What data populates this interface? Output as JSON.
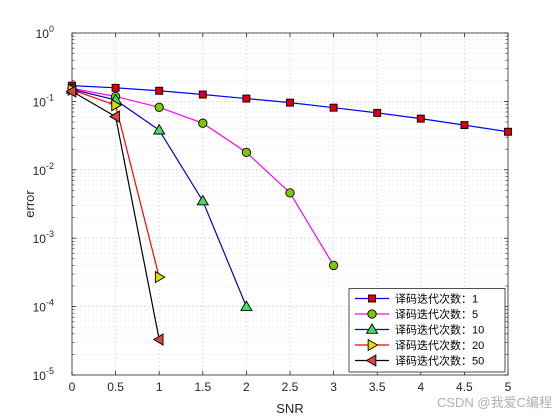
{
  "chart_data": {
    "type": "line",
    "xlabel": "SNR",
    "ylabel": "error",
    "yscale": "log",
    "xlim": [
      0,
      5
    ],
    "ylim": [
      1e-05,
      1
    ],
    "grid": true,
    "legend_position": "bottom-right",
    "x_ticks": [
      "0",
      "0.5",
      "1",
      "1.5",
      "2",
      "2.5",
      "3",
      "3.5",
      "4",
      "4.5",
      "5"
    ],
    "y_ticks": [
      {
        "base": "10",
        "exp": "0"
      },
      {
        "base": "10",
        "exp": "-1"
      },
      {
        "base": "10",
        "exp": "-2"
      },
      {
        "base": "10",
        "exp": "-3"
      },
      {
        "base": "10",
        "exp": "-4"
      },
      {
        "base": "10",
        "exp": "-5"
      }
    ],
    "series": [
      {
        "name": "译码迭代次数：1",
        "color": "#0000ff",
        "marker": "square",
        "marker_color": "#dd0000",
        "x": [
          0,
          0.5,
          1,
          1.5,
          2,
          2.5,
          3,
          3.5,
          4,
          4.5,
          5
        ],
        "y": [
          0.17,
          0.158,
          0.143,
          0.126,
          0.11,
          0.096,
          0.081,
          0.068,
          0.056,
          0.045,
          0.036
        ]
      },
      {
        "name": "译码迭代次数：5",
        "color": "#ff00ff",
        "marker": "circle",
        "marker_color": "#77cc00",
        "x": [
          0,
          0.5,
          1,
          1.5,
          2,
          2.5,
          3
        ],
        "y": [
          0.155,
          0.118,
          0.082,
          0.048,
          0.018,
          0.0046,
          0.0004
        ]
      },
      {
        "name": "译码迭代次数：10",
        "color": "#0000cc",
        "marker": "triangle-up",
        "marker_color": "#44dd66",
        "x": [
          0,
          0.5,
          1,
          1.5,
          2
        ],
        "y": [
          0.15,
          0.105,
          0.038,
          0.0035,
          0.0001
        ]
      },
      {
        "name": "译码迭代次数：20",
        "color": "#ff0000",
        "marker": "triangle-right",
        "marker_color": "#dddd00",
        "x": [
          0,
          0.5,
          1
        ],
        "y": [
          0.148,
          0.088,
          0.00027
        ]
      },
      {
        "name": "译码迭代次数：50",
        "color": "#000000",
        "marker": "triangle-left",
        "marker_color": "#dd4444",
        "x": [
          0,
          0.5,
          1
        ],
        "y": [
          0.14,
          0.06,
          3.3e-05
        ]
      }
    ]
  },
  "watermark": "CSDN @我爱C编程"
}
